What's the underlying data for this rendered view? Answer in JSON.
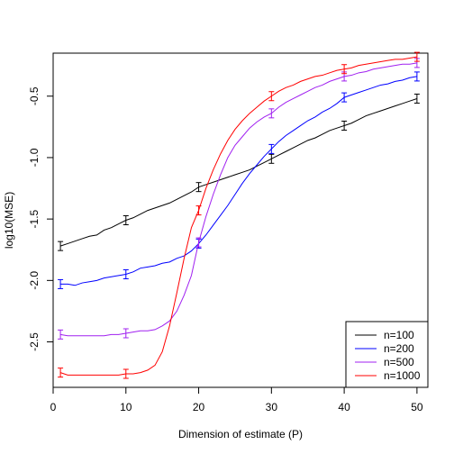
{
  "chart_data": {
    "type": "line",
    "xlabel": "Dimension of estimate (P)",
    "ylabel": "log10(MSE)",
    "xlim": [
      0,
      51.5
    ],
    "ylim": [
      -2.87,
      -0.15
    ],
    "x_ticks": [
      0,
      10,
      20,
      30,
      40,
      50
    ],
    "y_ticks": [
      -2.5,
      -2.0,
      -1.5,
      -1.0,
      -0.5
    ],
    "y_tick_labels": [
      "-2.5",
      "-2.0",
      "-1.5",
      "-1.0",
      "-0.5"
    ],
    "x_tick_labels": [
      "0",
      "10",
      "20",
      "30",
      "40",
      "50"
    ],
    "legend_position": "bottom-right",
    "grid": false,
    "error_bar_x": [
      1,
      10,
      20,
      30,
      40,
      50
    ],
    "series": [
      {
        "name": "n=100",
        "color": "#000000",
        "x": [
          1,
          2,
          3,
          4,
          5,
          6,
          7,
          8,
          9,
          10,
          11,
          12,
          13,
          14,
          15,
          16,
          17,
          18,
          19,
          20,
          21,
          22,
          23,
          24,
          25,
          26,
          27,
          28,
          29,
          30,
          31,
          32,
          33,
          34,
          35,
          36,
          37,
          38,
          39,
          40,
          41,
          42,
          43,
          44,
          45,
          46,
          47,
          48,
          49,
          50
        ],
        "values": [
          -1.72,
          -1.7,
          -1.68,
          -1.66,
          -1.64,
          -1.63,
          -1.59,
          -1.57,
          -1.54,
          -1.51,
          -1.49,
          -1.46,
          -1.43,
          -1.41,
          -1.39,
          -1.37,
          -1.34,
          -1.31,
          -1.28,
          -1.24,
          -1.22,
          -1.2,
          -1.18,
          -1.16,
          -1.14,
          -1.12,
          -1.1,
          -1.07,
          -1.04,
          -1.01,
          -0.98,
          -0.95,
          -0.92,
          -0.89,
          -0.86,
          -0.84,
          -0.81,
          -0.78,
          -0.76,
          -0.74,
          -0.72,
          -0.69,
          -0.66,
          -0.64,
          -0.62,
          -0.6,
          -0.58,
          -0.56,
          -0.54,
          -0.52
        ]
      },
      {
        "name": "n=200",
        "color": "#0000ff",
        "x": [
          1,
          2,
          3,
          4,
          5,
          6,
          7,
          8,
          9,
          10,
          11,
          12,
          13,
          14,
          15,
          16,
          17,
          18,
          19,
          20,
          21,
          22,
          23,
          24,
          25,
          26,
          27,
          28,
          29,
          30,
          31,
          32,
          33,
          34,
          35,
          36,
          37,
          38,
          39,
          40,
          41,
          42,
          43,
          44,
          45,
          46,
          47,
          48,
          49,
          50
        ],
        "values": [
          -2.03,
          -2.03,
          -2.04,
          -2.02,
          -2.01,
          -2.0,
          -1.98,
          -1.97,
          -1.96,
          -1.95,
          -1.93,
          -1.9,
          -1.89,
          -1.88,
          -1.86,
          -1.85,
          -1.82,
          -1.8,
          -1.76,
          -1.7,
          -1.63,
          -1.55,
          -1.47,
          -1.39,
          -1.3,
          -1.21,
          -1.13,
          -1.06,
          -0.99,
          -0.93,
          -0.87,
          -0.82,
          -0.78,
          -0.74,
          -0.7,
          -0.67,
          -0.63,
          -0.6,
          -0.56,
          -0.51,
          -0.49,
          -0.47,
          -0.45,
          -0.43,
          -0.41,
          -0.4,
          -0.38,
          -0.37,
          -0.35,
          -0.34
        ]
      },
      {
        "name": "n=500",
        "color": "#a020f0",
        "x": [
          1,
          2,
          3,
          4,
          5,
          6,
          7,
          8,
          9,
          10,
          11,
          12,
          13,
          14,
          15,
          16,
          17,
          18,
          19,
          20,
          21,
          22,
          23,
          24,
          25,
          26,
          27,
          28,
          29,
          30,
          31,
          32,
          33,
          34,
          35,
          36,
          37,
          38,
          39,
          40,
          41,
          42,
          43,
          44,
          45,
          46,
          47,
          48,
          49,
          50
        ],
        "values": [
          -2.44,
          -2.45,
          -2.45,
          -2.45,
          -2.45,
          -2.45,
          -2.45,
          -2.44,
          -2.44,
          -2.43,
          -2.42,
          -2.41,
          -2.41,
          -2.4,
          -2.37,
          -2.33,
          -2.25,
          -2.12,
          -1.96,
          -1.69,
          -1.48,
          -1.3,
          -1.14,
          -1.0,
          -0.9,
          -0.83,
          -0.76,
          -0.71,
          -0.67,
          -0.64,
          -0.59,
          -0.55,
          -0.52,
          -0.49,
          -0.46,
          -0.43,
          -0.41,
          -0.38,
          -0.36,
          -0.34,
          -0.33,
          -0.31,
          -0.3,
          -0.28,
          -0.27,
          -0.26,
          -0.25,
          -0.24,
          -0.24,
          -0.23
        ]
      },
      {
        "name": "n=1000",
        "color": "#ff0000",
        "x": [
          1,
          2,
          3,
          4,
          5,
          6,
          7,
          8,
          9,
          10,
          11,
          12,
          13,
          14,
          15,
          16,
          17,
          18,
          19,
          20,
          21,
          22,
          23,
          24,
          25,
          26,
          27,
          28,
          29,
          30,
          31,
          32,
          33,
          34,
          35,
          36,
          37,
          38,
          39,
          40,
          41,
          42,
          43,
          44,
          45,
          46,
          47,
          48,
          49,
          50
        ],
        "values": [
          -2.75,
          -2.77,
          -2.77,
          -2.77,
          -2.77,
          -2.77,
          -2.77,
          -2.77,
          -2.77,
          -2.76,
          -2.76,
          -2.75,
          -2.73,
          -2.69,
          -2.58,
          -2.37,
          -2.1,
          -1.82,
          -1.57,
          -1.43,
          -1.25,
          -1.1,
          -0.97,
          -0.86,
          -0.77,
          -0.7,
          -0.64,
          -0.59,
          -0.54,
          -0.5,
          -0.46,
          -0.43,
          -0.41,
          -0.38,
          -0.36,
          -0.34,
          -0.33,
          -0.31,
          -0.29,
          -0.28,
          -0.27,
          -0.25,
          -0.24,
          -0.23,
          -0.22,
          -0.21,
          -0.2,
          -0.2,
          -0.19,
          -0.18
        ]
      }
    ]
  }
}
